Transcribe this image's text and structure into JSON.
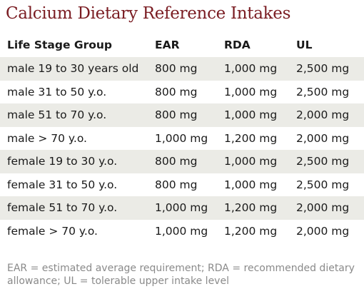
{
  "title": "Calcium Dietary Reference Intakes",
  "table": {
    "headers": [
      "Life Stage Group",
      "EAR",
      "RDA",
      "UL"
    ],
    "rows": [
      [
        "male 19 to 30 years old",
        "800 mg",
        "1,000 mg",
        "2,500 mg"
      ],
      [
        "male 31 to 50 y.o.",
        "800 mg",
        "1,000 mg",
        "2,500 mg"
      ],
      [
        "male 51 to 70 y.o.",
        "800 mg",
        "1,000 mg",
        "2,000 mg"
      ],
      [
        "male > 70 y.o.",
        "1,000 mg",
        "1,200 mg",
        "2,000 mg"
      ],
      [
        "female 19 to 30 y.o.",
        "800 mg",
        "1,000 mg",
        "2,500 mg"
      ],
      [
        "female 31 to 50 y.o.",
        "800 mg",
        "1,000 mg",
        "2,500 mg"
      ],
      [
        "female 51 to 70 y.o.",
        "1,000 mg",
        "1,200 mg",
        "2,000 mg"
      ],
      [
        "female > 70 y.o.",
        "1,000 mg",
        "1,200 mg",
        "2,000 mg"
      ]
    ]
  },
  "footnote": "EAR = estimated average requirement; RDA = recommended dietary allowance; UL = tolerable upper intake level",
  "colors": {
    "title": "#7a1c22",
    "stripe": "#ebebe6",
    "footnote": "#8a8a8a"
  }
}
